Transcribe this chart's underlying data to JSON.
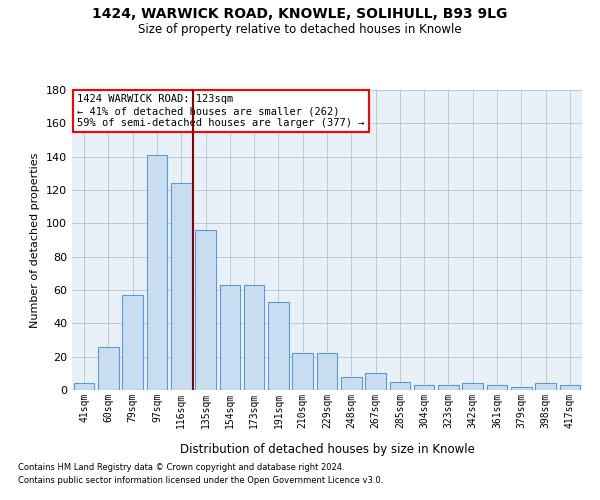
{
  "title_line1": "1424, WARWICK ROAD, KNOWLE, SOLIHULL, B93 9LG",
  "title_line2": "Size of property relative to detached houses in Knowle",
  "xlabel": "Distribution of detached houses by size in Knowle",
  "ylabel": "Number of detached properties",
  "categories": [
    "41sqm",
    "60sqm",
    "79sqm",
    "97sqm",
    "116sqm",
    "135sqm",
    "154sqm",
    "173sqm",
    "191sqm",
    "210sqm",
    "229sqm",
    "248sqm",
    "267sqm",
    "285sqm",
    "304sqm",
    "323sqm",
    "342sqm",
    "361sqm",
    "379sqm",
    "398sqm",
    "417sqm"
  ],
  "values": [
    4,
    26,
    57,
    141,
    124,
    96,
    63,
    63,
    53,
    22,
    22,
    8,
    10,
    5,
    3,
    3,
    4,
    3,
    2,
    4,
    3
  ],
  "bar_color": "#c9ddf0",
  "bar_edge_color": "#5b9bd5",
  "background_color": "#ffffff",
  "plot_bg_color": "#e8f0f8",
  "grid_color": "#b0b8c8",
  "vline_color": "#8b0000",
  "vline_pos": 4.5,
  "ylim": [
    0,
    180
  ],
  "yticks": [
    0,
    20,
    40,
    60,
    80,
    100,
    120,
    140,
    160,
    180
  ],
  "annot_line1": "1424 WARWICK ROAD: 123sqm",
  "annot_line2": "← 41% of detached houses are smaller (262)",
  "annot_line3": "59% of semi-detached houses are larger (377) →",
  "footnote1": "Contains HM Land Registry data © Crown copyright and database right 2024.",
  "footnote2": "Contains public sector information licensed under the Open Government Licence v3.0."
}
